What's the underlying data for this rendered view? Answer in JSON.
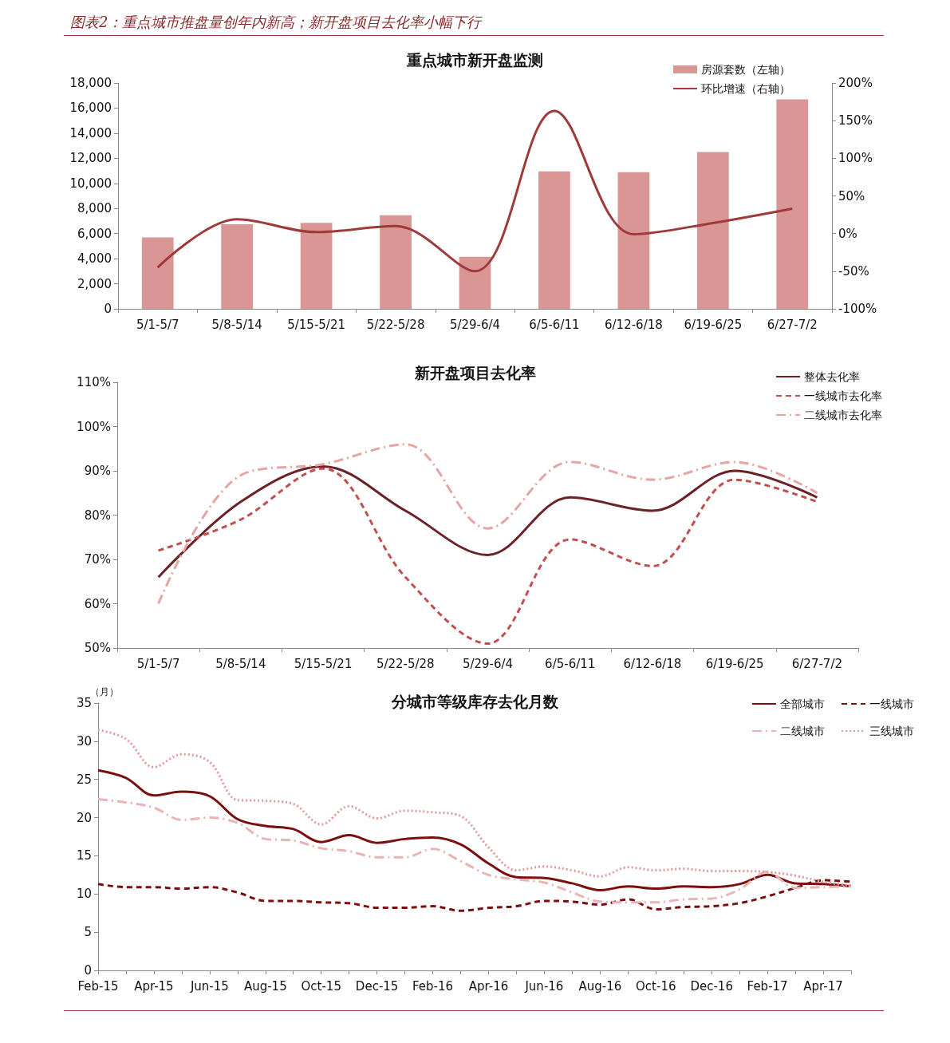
{
  "chart_data": [
    {
      "type": "bar",
      "title": "重点城市新开盘监测",
      "annotations": [
        "图表2：重点城市推盘量创年内新高；新开盘项目去化率小幅下行"
      ],
      "categories": [
        "5/1-5/7",
        "5/8-5/14",
        "5/15-5/21",
        "5/22-5/28",
        "5/29-6/4",
        "6/5-6/11",
        "6/12-6/18",
        "6/19-6/25",
        "6/27-7/2"
      ],
      "series": [
        {
          "name": "房源套数（左轴）",
          "color": "#d99694",
          "values": [
            5700,
            6750,
            6850,
            7450,
            4150,
            10950,
            10900,
            12500,
            16700
          ]
        },
        {
          "name": "环比增速（右轴）",
          "type": "line",
          "axis": "y2",
          "color": "#a0393a",
          "values": [
            -45,
            19,
            2,
            10,
            -50,
            163,
            -1,
            14,
            33
          ]
        }
      ],
      "ylim": [
        0,
        18000
      ],
      "yticks": [
        0,
        {
          "value": 2000,
          "label": "2,000"
        },
        {
          "value": 4000,
          "label": "4,000"
        },
        {
          "value": 6000,
          "label": "6,000"
        },
        {
          "value": 8000,
          "label": "8,000"
        },
        {
          "value": 10000,
          "label": "10,000"
        },
        {
          "value": 12000,
          "label": "12,000"
        },
        {
          "value": 14000,
          "label": "14,000"
        },
        {
          "value": 16000,
          "label": "16,000"
        },
        {
          "value": 18000,
          "label": "18,000"
        }
      ],
      "y2lim": [
        -100,
        200
      ],
      "y2ticks": [
        {
          "value": -100,
          "label": "-100%"
        },
        {
          "value": -50,
          "label": "-50%"
        },
        {
          "value": 0,
          "label": "0%"
        },
        {
          "value": 50,
          "label": "50%"
        },
        {
          "value": 100,
          "label": "100%"
        },
        {
          "value": 150,
          "label": "150%"
        },
        {
          "value": 200,
          "label": "200%"
        }
      ],
      "legend": "top right",
      "marker": "none"
    },
    {
      "type": "line",
      "title": "新开盘项目去化率",
      "categories": [
        "5/1-5/7",
        "5/8-5/14",
        "5/15-5/21",
        "5/22-5/28",
        "5/29-6/4",
        "6/5-6/11",
        "6/12-6/18",
        "6/19-6/25",
        "6/27-7/2"
      ],
      "series": [
        {
          "name": "整体去化率",
          "color": "#6b2226",
          "line_style": "solid",
          "values": [
            66,
            83,
            91,
            81,
            71,
            84,
            81,
            90,
            84
          ]
        },
        {
          "name": "一线城市去化率",
          "color": "#c0504d",
          "line_style": "dashed",
          "values": [
            72,
            79,
            90.5,
            66,
            51,
            74.5,
            68.5,
            88,
            83
          ]
        },
        {
          "name": "二线城市去化率",
          "color": "#e6a5a3",
          "line_style": "dashdot",
          "values": [
            60,
            89,
            91.5,
            96,
            77,
            92,
            88,
            92,
            85
          ]
        }
      ],
      "ylim": [
        50,
        110
      ],
      "yticks": [
        {
          "value": 50,
          "label": "50%"
        },
        {
          "value": 60,
          "label": "60%"
        },
        {
          "value": 70,
          "label": "70%"
        },
        {
          "value": 80,
          "label": "80%"
        },
        {
          "value": 90,
          "label": "90%"
        },
        {
          "value": 100,
          "label": "100%"
        },
        {
          "value": 110,
          "label": "110%"
        }
      ],
      "legend": "top right",
      "marker": "none"
    },
    {
      "type": "line",
      "title": "分城市等级库存去化月数",
      "ylabel": "（月）",
      "categories": [
        "Feb-15",
        null,
        "Apr-15",
        null,
        "Jun-15",
        null,
        "Aug-15",
        null,
        "Oct-15",
        null,
        "Dec-15",
        null,
        "Feb-16",
        null,
        "Apr-16",
        null,
        "Jun-16",
        null,
        "Aug-16",
        null,
        "Oct-16",
        null,
        "Dec-16",
        null,
        "Feb-17",
        null,
        "Apr-17",
        null
      ],
      "series": [
        {
          "name": "全部城市",
          "color": "#7b0f0f",
          "line_style": "solid",
          "values": [
            26.2,
            25.2,
            22.9,
            23.4,
            22.8,
            19.8,
            18.9,
            18.5,
            16.8,
            17.7,
            16.7,
            17.2,
            17.4,
            16.5,
            14.0,
            12.2,
            12.1,
            11.4,
            10.5,
            11.0,
            10.7,
            11.0,
            10.9,
            11.3,
            12.5,
            11.4,
            11.3,
            11.0
          ]
        },
        {
          "name": "一线城市",
          "color": "#7b0f0f",
          "line_style": "dashed",
          "values": [
            11.3,
            10.9,
            10.9,
            10.7,
            10.9,
            10.2,
            9.1,
            9.1,
            8.9,
            8.8,
            8.2,
            8.2,
            8.4,
            7.8,
            8.2,
            8.4,
            9.1,
            9.0,
            8.6,
            9.3,
            8.0,
            8.3,
            8.4,
            8.8,
            9.7,
            10.8,
            11.8,
            11.6
          ]
        },
        {
          "name": "二线城市",
          "color": "#e8b4b4",
          "line_style": "dashdot",
          "values": [
            22.4,
            22.0,
            21.3,
            19.7,
            20.0,
            19.3,
            17.2,
            17.0,
            16.0,
            15.6,
            14.8,
            14.8,
            15.9,
            14.3,
            12.5,
            11.9,
            11.5,
            10.2,
            9.0,
            8.9,
            8.9,
            9.3,
            9.4,
            10.6,
            12.9,
            10.8,
            10.9,
            11.0
          ]
        },
        {
          "name": "三线城市",
          "color": "#e39a9a",
          "line_style": "dotted",
          "values": [
            31.5,
            30.3,
            26.6,
            28.3,
            27.3,
            22.3,
            22.2,
            21.8,
            19.1,
            21.5,
            19.9,
            20.9,
            20.7,
            20.2,
            16.1,
            13.1,
            13.6,
            13.1,
            12.3,
            13.5,
            13.1,
            13.3,
            13.0,
            13.0,
            12.9,
            12.4,
            11.6,
            11.1
          ]
        }
      ],
      "ylim": [
        0,
        35
      ],
      "yticks": [
        0,
        5,
        10,
        15,
        20,
        25,
        30,
        35
      ],
      "legend": "top right",
      "marker": "none"
    }
  ]
}
